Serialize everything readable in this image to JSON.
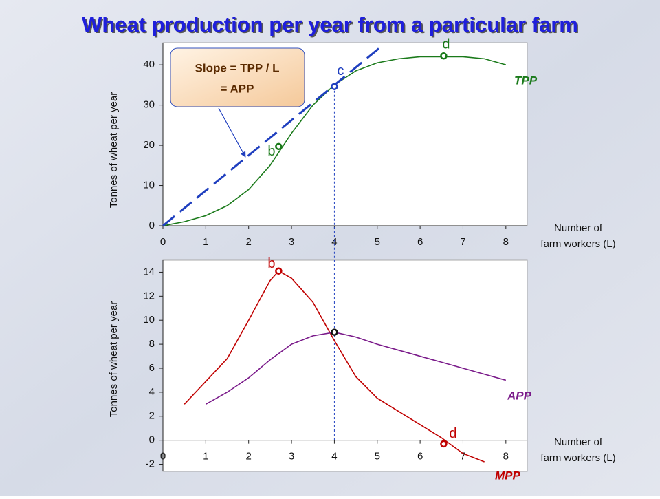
{
  "title": "Wheat production per year from a particular farm",
  "chart_data": [
    {
      "type": "line",
      "y_label": "Tonnes of wheat  per year",
      "x_label": [
        "Number of",
        "farm workers (L)"
      ],
      "xlim": [
        0,
        8.5
      ],
      "xticks": [
        0,
        1,
        2,
        3,
        4,
        5,
        6,
        7,
        8
      ],
      "ylim": [
        0,
        45.5
      ],
      "yticks": [
        0,
        10,
        20,
        30,
        40
      ],
      "vline": 4,
      "callout": [
        "Slope = TPP / L",
        "= APP"
      ],
      "series": [
        {
          "name": "TPP",
          "color": "#1a7a1a",
          "x": [
            0,
            0.5,
            1,
            1.5,
            2,
            2.5,
            3,
            3.5,
            4,
            4.5,
            5,
            5.5,
            6,
            6.5,
            7,
            7.5,
            8
          ],
          "values": [
            0,
            1,
            2.5,
            5,
            9,
            15,
            23,
            30,
            35,
            38.5,
            40.5,
            41.5,
            42,
            42,
            42,
            41.5,
            40
          ]
        },
        {
          "color": "#1f3fbf",
          "dashed": true,
          "x": [
            0,
            5.1
          ],
          "values": [
            0,
            44.6
          ]
        }
      ],
      "points": [
        {
          "label": "b",
          "x": 2.7,
          "y": 19.7,
          "color": "#1a7a1a"
        },
        {
          "label": "c",
          "x": 4,
          "y": 34.6,
          "color": "#1f3fbf"
        },
        {
          "label": "d",
          "x": 6.55,
          "y": 42.2,
          "color": "#1a7a1a"
        }
      ]
    },
    {
      "type": "line",
      "y_label": "Tonnes of wheat  per year",
      "x_label": [
        "Number of",
        "farm workers (L)"
      ],
      "xlim": [
        0,
        8.5
      ],
      "xticks": [
        0,
        1,
        2,
        3,
        4,
        5,
        6,
        7,
        8
      ],
      "ylim": [
        -2.6,
        15
      ],
      "yticks": [
        -2,
        0,
        2,
        4,
        6,
        8,
        10,
        12,
        14
      ],
      "vline": 4,
      "series": [
        {
          "name": "MPP",
          "color": "#c00000",
          "x": [
            0.5,
            1,
            1.5,
            2,
            2.5,
            2.7,
            3,
            3.5,
            4,
            4.5,
            5,
            5.5,
            6,
            6.5,
            7,
            7.5
          ],
          "values": [
            3,
            4.9,
            6.8,
            10,
            13.3,
            14.1,
            13.5,
            11.5,
            8.3,
            5.3,
            3.5,
            2.4,
            1.3,
            0.2,
            -1.1,
            -1.8
          ]
        },
        {
          "name": "APP",
          "color": "#7a1a8a",
          "x": [
            1,
            1.5,
            2,
            2.5,
            3,
            3.5,
            4,
            4.5,
            5,
            5.5,
            6,
            6.5,
            7,
            7.5,
            8
          ],
          "values": [
            3,
            4,
            5.2,
            6.7,
            8,
            8.7,
            9,
            8.6,
            8,
            7.5,
            7,
            6.5,
            6,
            5.5,
            5
          ]
        }
      ],
      "points": [
        {
          "label": "b",
          "x": 2.7,
          "y": 14.1,
          "color": "#c00000"
        },
        {
          "x": 4,
          "y": 9,
          "color": "#111111"
        },
        {
          "label": "d",
          "x": 6.55,
          "y": -0.3,
          "color": "#c00000"
        }
      ]
    }
  ]
}
